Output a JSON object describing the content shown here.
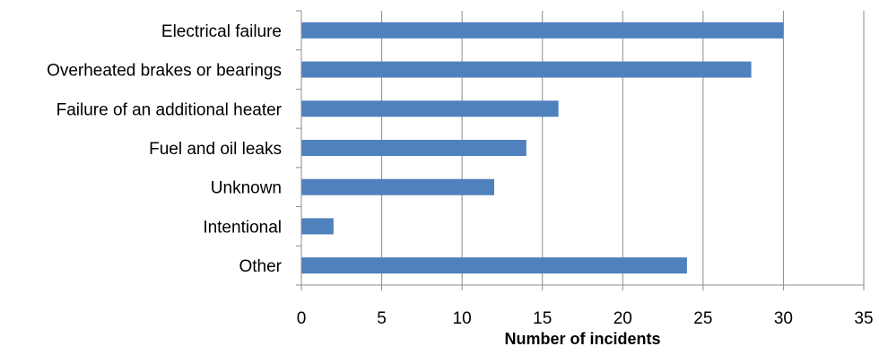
{
  "chart_data": {
    "type": "bar",
    "orientation": "horizontal",
    "categories": [
      "Electrical failure",
      "Overheated brakes or bearings",
      "Failure of an additional heater",
      "Fuel and oil leaks",
      "Unknown",
      "Intentional",
      "Other"
    ],
    "values": [
      30,
      28,
      16,
      14,
      12,
      2,
      24
    ],
    "title": "",
    "xlabel": "Number of incidents",
    "ylabel": "",
    "xlim": [
      0,
      35
    ],
    "x_ticks": [
      "0",
      "5",
      "10",
      "15",
      "20",
      "25",
      "30",
      "35"
    ],
    "grid": "vertical major gridlines on",
    "legend": "none",
    "colors": {
      "bar": "#4f81bd",
      "grid": "#8c8c8c",
      "text": "#000000"
    }
  }
}
